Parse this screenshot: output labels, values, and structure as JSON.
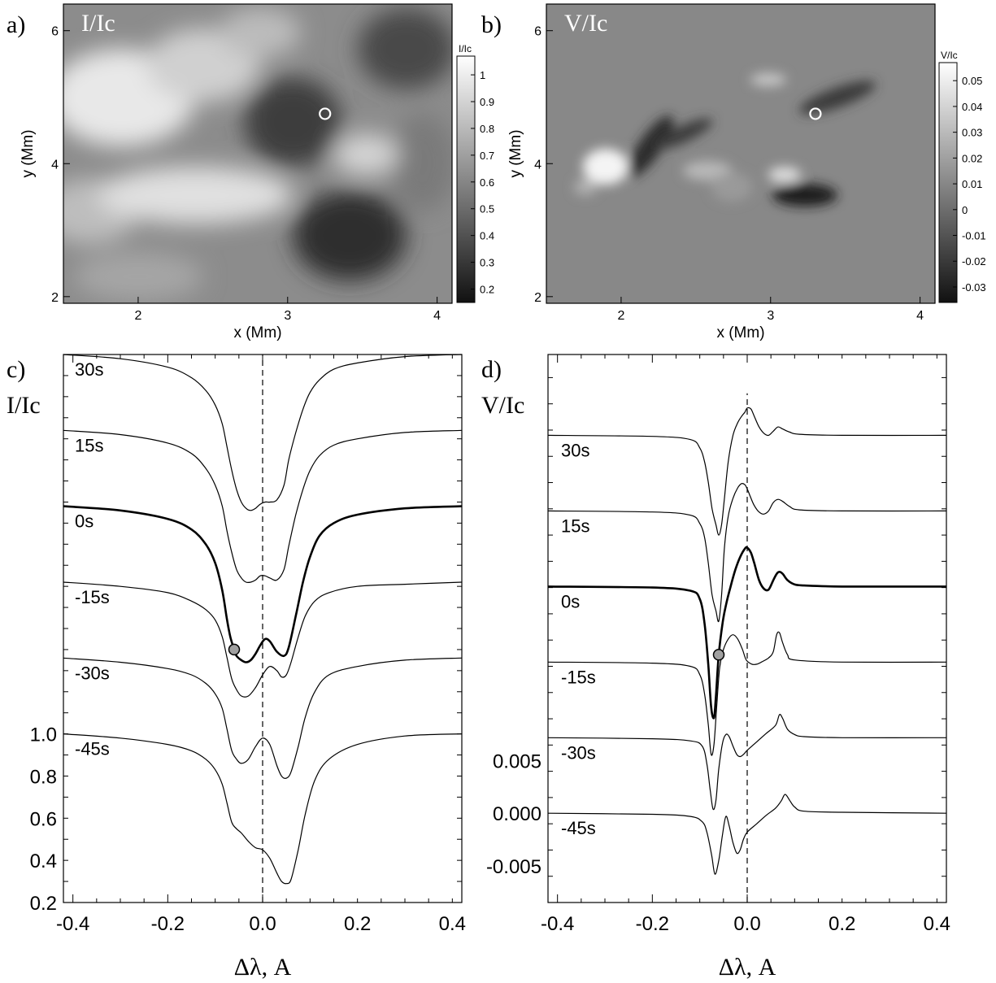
{
  "panels": {
    "a": {
      "label": "a)",
      "title": "I/Ic"
    },
    "b": {
      "label": "b)",
      "title": "V/Ic"
    },
    "c": {
      "label": "c)",
      "ylabel": "I/Ic"
    },
    "d": {
      "label": "d)",
      "ylabel": "V/Ic"
    }
  },
  "colors": {
    "background": "#ffffff",
    "axes": "#000000",
    "marker_fill": "#a0a0a0",
    "map_marker": "#ffffff"
  },
  "chart_data": [
    {
      "id": "a",
      "type": "heatmap",
      "title": "I/Ic",
      "xlabel": "x (Mm)",
      "ylabel": "y (Mm)",
      "xlim": [
        1.5,
        4.1
      ],
      "ylim": [
        1.9,
        6.4
      ],
      "xticks": [
        2,
        3,
        4
      ],
      "yticks": [
        2,
        4,
        6
      ],
      "colorbar": {
        "title": "I/Ic",
        "range": [
          0.15,
          1.07
        ],
        "ticks": [
          "0.2",
          "0.3",
          "0.4",
          "0.5",
          "0.6",
          "0.7",
          "0.8",
          "0.9",
          "1"
        ],
        "tick_values": [
          0.2,
          0.3,
          0.4,
          0.5,
          0.6,
          0.7,
          0.8,
          0.9,
          1.0
        ],
        "colormap": "grayscale"
      },
      "marker": {
        "x": 3.25,
        "y": 4.75,
        "shape": "open-circle"
      }
    },
    {
      "id": "b",
      "type": "heatmap",
      "title": "V/Ic",
      "xlabel": "x (Mm)",
      "ylabel": "y (Mm)",
      "xlim": [
        1.5,
        4.1
      ],
      "ylim": [
        1.9,
        6.4
      ],
      "xticks": [
        2,
        3,
        4
      ],
      "yticks": [
        2,
        4,
        6
      ],
      "colorbar": {
        "title": "V/Ic",
        "range": [
          -0.036,
          0.057
        ],
        "ticks": [
          "-0.03",
          "-0.02",
          "-0.01",
          "0",
          "0.01",
          "0.02",
          "0.03",
          "0.04",
          "0.05"
        ],
        "tick_values": [
          -0.03,
          -0.02,
          -0.01,
          0,
          0.01,
          0.02,
          0.03,
          0.04,
          0.05
        ],
        "colormap": "grayscale"
      },
      "marker": {
        "x": 3.3,
        "y": 4.75,
        "shape": "open-circle"
      }
    },
    {
      "id": "c",
      "type": "line",
      "ylabel": "I/Ic",
      "xlabel": "Δλ, A",
      "xlim": [
        -0.42,
        0.42
      ],
      "xticks": [
        "-0.4",
        "-0.2",
        "0.0",
        "0.2",
        "0.4"
      ],
      "xtick_values": [
        -0.4,
        -0.2,
        0,
        0.2,
        0.4
      ],
      "ylim": [
        0.2,
        2.8
      ],
      "yticks": [
        "0.2",
        "0.4",
        "0.6",
        "0.8",
        "1.0"
      ],
      "ytick_values": [
        0.2,
        0.4,
        0.6,
        0.8,
        1.0
      ],
      "offset_step": 0.36,
      "series": [
        {
          "name": "-45s",
          "offset": 0.0,
          "x": [
            -0.42,
            -0.3,
            -0.2,
            -0.15,
            -0.12,
            -0.1,
            -0.085,
            -0.075,
            -0.065,
            -0.055,
            -0.045,
            -0.03,
            -0.015,
            0.0,
            0.015,
            0.03,
            0.04,
            0.05,
            0.06,
            0.075,
            0.09,
            0.11,
            0.14,
            0.2,
            0.3,
            0.42
          ],
          "y": [
            1.0,
            0.98,
            0.95,
            0.92,
            0.88,
            0.83,
            0.76,
            0.67,
            0.58,
            0.55,
            0.53,
            0.49,
            0.46,
            0.45,
            0.41,
            0.34,
            0.3,
            0.29,
            0.31,
            0.45,
            0.62,
            0.78,
            0.88,
            0.95,
            0.99,
            1.0
          ],
          "bold": false
        },
        {
          "name": "-30s",
          "offset": 0.36,
          "x": [
            -0.42,
            -0.3,
            -0.2,
            -0.15,
            -0.12,
            -0.1,
            -0.085,
            -0.075,
            -0.065,
            -0.055,
            -0.045,
            -0.03,
            -0.015,
            0.0,
            0.015,
            0.03,
            0.04,
            0.05,
            0.06,
            0.075,
            0.09,
            0.11,
            0.14,
            0.2,
            0.3,
            0.42
          ],
          "y": [
            1.0,
            0.98,
            0.95,
            0.92,
            0.88,
            0.83,
            0.76,
            0.66,
            0.56,
            0.52,
            0.5,
            0.52,
            0.58,
            0.62,
            0.59,
            0.49,
            0.44,
            0.43,
            0.46,
            0.58,
            0.72,
            0.84,
            0.92,
            0.96,
            0.99,
            1.0
          ],
          "bold": false
        },
        {
          "name": "-15s",
          "offset": 0.72,
          "x": [
            -0.42,
            -0.3,
            -0.2,
            -0.15,
            -0.12,
            -0.1,
            -0.085,
            -0.075,
            -0.065,
            -0.055,
            -0.045,
            -0.03,
            -0.015,
            0.0,
            0.015,
            0.03,
            0.04,
            0.05,
            0.06,
            0.075,
            0.09,
            0.11,
            0.14,
            0.2,
            0.3,
            0.42
          ],
          "y": [
            1.0,
            0.98,
            0.95,
            0.91,
            0.87,
            0.82,
            0.74,
            0.64,
            0.54,
            0.49,
            0.46,
            0.46,
            0.5,
            0.56,
            0.6,
            0.58,
            0.55,
            0.56,
            0.62,
            0.74,
            0.84,
            0.91,
            0.95,
            0.98,
            0.99,
            1.0
          ],
          "bold": false
        },
        {
          "name": "0s",
          "offset": 1.08,
          "x": [
            -0.42,
            -0.3,
            -0.2,
            -0.15,
            -0.12,
            -0.1,
            -0.085,
            -0.075,
            -0.068,
            -0.06,
            -0.055,
            -0.045,
            -0.035,
            -0.025,
            -0.015,
            -0.005,
            0.005,
            0.015,
            0.03,
            0.045,
            0.055,
            0.07,
            0.085,
            0.1,
            0.12,
            0.15,
            0.2,
            0.3,
            0.42
          ],
          "y": [
            1.0,
            0.98,
            0.94,
            0.89,
            0.82,
            0.73,
            0.6,
            0.46,
            0.38,
            0.32,
            0.29,
            0.27,
            0.26,
            0.27,
            0.3,
            0.34,
            0.37,
            0.36,
            0.31,
            0.29,
            0.33,
            0.48,
            0.64,
            0.76,
            0.86,
            0.92,
            0.96,
            0.99,
            1.0
          ],
          "bold": true
        },
        {
          "name": "15s",
          "offset": 1.44,
          "x": [
            -0.42,
            -0.3,
            -0.2,
            -0.15,
            -0.12,
            -0.1,
            -0.085,
            -0.075,
            -0.065,
            -0.055,
            -0.045,
            -0.035,
            -0.025,
            -0.015,
            -0.005,
            0.005,
            0.015,
            0.03,
            0.045,
            0.055,
            0.07,
            0.085,
            0.1,
            0.12,
            0.15,
            0.2,
            0.3,
            0.42
          ],
          "y": [
            1.0,
            0.98,
            0.94,
            0.89,
            0.82,
            0.74,
            0.64,
            0.52,
            0.42,
            0.34,
            0.3,
            0.28,
            0.28,
            0.29,
            0.31,
            0.31,
            0.3,
            0.29,
            0.34,
            0.45,
            0.6,
            0.72,
            0.81,
            0.88,
            0.93,
            0.96,
            0.99,
            1.0
          ],
          "bold": false
        },
        {
          "name": "30s",
          "offset": 1.8,
          "x": [
            -0.42,
            -0.3,
            -0.2,
            -0.15,
            -0.12,
            -0.1,
            -0.085,
            -0.075,
            -0.065,
            -0.055,
            -0.045,
            -0.035,
            -0.025,
            -0.015,
            -0.005,
            0.005,
            0.015,
            0.03,
            0.045,
            0.055,
            0.07,
            0.085,
            0.1,
            0.12,
            0.15,
            0.2,
            0.3,
            0.42
          ],
          "y": [
            1.0,
            0.98,
            0.94,
            0.89,
            0.83,
            0.76,
            0.67,
            0.56,
            0.45,
            0.36,
            0.3,
            0.27,
            0.26,
            0.27,
            0.29,
            0.3,
            0.3,
            0.31,
            0.38,
            0.5,
            0.63,
            0.74,
            0.82,
            0.88,
            0.93,
            0.96,
            0.99,
            1.0
          ],
          "bold": false
        }
      ],
      "zero_line": 0.0,
      "marker": {
        "series": "0s",
        "x": -0.06
      }
    },
    {
      "id": "d",
      "type": "line",
      "ylabel": "V/Ic",
      "xlabel": "Δλ, A",
      "xlim": [
        -0.42,
        0.42
      ],
      "xticks": [
        "-0.4",
        "-0.2",
        "0.0",
        "0.2",
        "0.4"
      ],
      "xtick_values": [
        -0.4,
        -0.2,
        0,
        0.2,
        0.4
      ],
      "ylim": [
        -0.0085,
        0.0437
      ],
      "yticks": [
        "-0.005",
        "0.000",
        "0.005"
      ],
      "ytick_values": [
        -0.005,
        0.0,
        0.005
      ],
      "offset_step": 0.0072,
      "series": [
        {
          "name": "-45s",
          "offset": 0.0,
          "x": [
            -0.42,
            -0.2,
            -0.12,
            -0.095,
            -0.085,
            -0.075,
            -0.068,
            -0.06,
            -0.052,
            -0.045,
            -0.038,
            -0.03,
            -0.022,
            -0.015,
            -0.008,
            0.0,
            0.02,
            0.04,
            0.06,
            0.072,
            0.08,
            0.09,
            0.1,
            0.12,
            0.2,
            0.42
          ],
          "y": [
            0.0,
            -0.0001,
            -0.0003,
            -0.0008,
            -0.0018,
            -0.004,
            -0.0058,
            -0.0045,
            -0.002,
            -0.0003,
            -0.0012,
            -0.0028,
            -0.0038,
            -0.0035,
            -0.0025,
            -0.0018,
            -0.001,
            -0.0002,
            0.0005,
            0.0012,
            0.0018,
            0.0012,
            0.0006,
            0.0002,
            0.0001,
            0.0
          ],
          "bold": false
        },
        {
          "name": "-30s",
          "offset": 0.0072,
          "x": [
            -0.42,
            -0.2,
            -0.12,
            -0.095,
            -0.085,
            -0.078,
            -0.072,
            -0.066,
            -0.06,
            -0.052,
            -0.045,
            -0.038,
            -0.03,
            -0.022,
            -0.015,
            -0.008,
            0.0,
            0.02,
            0.04,
            0.06,
            0.068,
            0.075,
            0.085,
            0.1,
            0.12,
            0.2,
            0.42
          ],
          "y": [
            0.0,
            -0.0001,
            -0.0003,
            -0.0008,
            -0.0025,
            -0.005,
            -0.0068,
            -0.006,
            -0.003,
            -0.0005,
            0.0003,
            0.0001,
            -0.0008,
            -0.0016,
            -0.0018,
            -0.0016,
            -0.0012,
            -0.0004,
            0.0004,
            0.0012,
            0.0022,
            0.0018,
            0.0008,
            0.0003,
            0.0001,
            0.0,
            0.0
          ],
          "bold": false
        },
        {
          "name": "-15s",
          "offset": 0.0144,
          "x": [
            -0.42,
            -0.2,
            -0.12,
            -0.1,
            -0.09,
            -0.082,
            -0.076,
            -0.07,
            -0.064,
            -0.058,
            -0.05,
            -0.04,
            -0.03,
            -0.02,
            -0.01,
            -0.002,
            0.01,
            0.02,
            0.03,
            0.045,
            0.055,
            0.062,
            0.068,
            0.075,
            0.085,
            0.1,
            0.2,
            0.42
          ],
          "y": [
            0.0,
            -0.0001,
            -0.0004,
            -0.0012,
            -0.003,
            -0.006,
            -0.0088,
            -0.0078,
            -0.004,
            -0.0005,
            0.0012,
            0.0022,
            0.0026,
            0.0022,
            0.0012,
            0.0002,
            -0.0002,
            -0.0002,
            0.0,
            0.0004,
            0.001,
            0.0026,
            0.0028,
            0.0018,
            0.0007,
            0.0002,
            0.0,
            0.0
          ],
          "bold": false
        },
        {
          "name": "0s",
          "offset": 0.0216,
          "x": [
            -0.42,
            -0.2,
            -0.12,
            -0.1,
            -0.09,
            -0.082,
            -0.076,
            -0.07,
            -0.066,
            -0.06,
            -0.052,
            -0.045,
            -0.035,
            -0.025,
            -0.015,
            -0.005,
            0.0,
            0.008,
            0.015,
            0.025,
            0.035,
            0.045,
            0.055,
            0.062,
            0.068,
            0.075,
            0.085,
            0.1,
            0.12,
            0.2,
            0.42
          ],
          "y": [
            0.0,
            -0.0001,
            -0.0004,
            -0.0012,
            -0.0035,
            -0.0075,
            -0.0115,
            -0.0125,
            -0.0105,
            -0.0065,
            -0.0035,
            -0.0018,
            0.0,
            0.0016,
            0.0028,
            0.0036,
            0.0037,
            0.0032,
            0.0022,
            0.0006,
            -0.0002,
            -0.0003,
            0.0006,
            0.0012,
            0.0014,
            0.0012,
            0.0006,
            0.0002,
            0.0001,
            0.0,
            0.0
          ],
          "bold": true
        },
        {
          "name": "15s",
          "offset": 0.0288,
          "x": [
            -0.42,
            -0.2,
            -0.12,
            -0.1,
            -0.09,
            -0.082,
            -0.074,
            -0.066,
            -0.06,
            -0.054,
            -0.048,
            -0.04,
            -0.03,
            -0.02,
            -0.012,
            -0.005,
            0.0,
            0.008,
            0.015,
            0.025,
            0.035,
            0.045,
            0.055,
            0.065,
            0.075,
            0.09,
            0.11,
            0.2,
            0.42
          ],
          "y": [
            0.0,
            -0.0001,
            -0.0004,
            -0.0012,
            -0.0025,
            -0.005,
            -0.008,
            -0.0095,
            -0.0105,
            -0.008,
            -0.0035,
            -0.0005,
            0.0012,
            0.0022,
            0.0026,
            0.0025,
            0.0021,
            0.0012,
            0.0005,
            -0.0001,
            -0.0003,
            0.0,
            0.0008,
            0.0011,
            0.0009,
            0.0004,
            0.0001,
            0.0,
            0.0
          ],
          "bold": false
        },
        {
          "name": "30s",
          "offset": 0.036,
          "x": [
            -0.42,
            -0.2,
            -0.12,
            -0.1,
            -0.09,
            -0.082,
            -0.074,
            -0.066,
            -0.06,
            -0.054,
            -0.048,
            -0.04,
            -0.03,
            -0.02,
            -0.012,
            -0.005,
            0.0,
            0.008,
            0.015,
            0.025,
            0.035,
            0.045,
            0.055,
            0.065,
            0.075,
            0.09,
            0.11,
            0.2,
            0.42
          ],
          "y": [
            0.0,
            -0.0001,
            -0.0004,
            -0.0012,
            -0.0025,
            -0.0045,
            -0.007,
            -0.0085,
            -0.0095,
            -0.0085,
            -0.006,
            -0.0025,
            0.0,
            0.0012,
            0.0018,
            0.0022,
            0.0026,
            0.0025,
            0.0018,
            0.0008,
            0.0002,
            0.0,
            0.0004,
            0.0008,
            0.0006,
            0.0003,
            0.0001,
            0.0,
            0.0
          ],
          "bold": false
        }
      ],
      "zero_line": 0.0,
      "marker": {
        "series": "0s",
        "x": -0.06
      }
    }
  ]
}
